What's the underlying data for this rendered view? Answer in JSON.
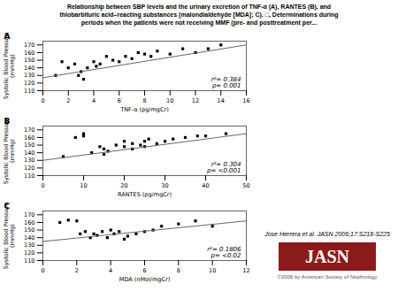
{
  "title": "Relationship between SBP levels and the urinary excretion of TNF-α (A), RANTES (B), and\nthiobarbituric acid–reacting substances (malondialdehyde [MDA]; C). □, Determinations during\nperiods when the patients were not receiving MMF (pre- and posttreatment per...",
  "footer": "Jose Herrera et al. JASN 2006;17:S218-S225",
  "logo": {
    "text": "JASN",
    "color": "#8B1A1A",
    "text_color": "#ffffff"
  },
  "copyright": "©2006 by American Society of Nephrology",
  "chart_data": [
    {
      "type": "scatter",
      "label": "A",
      "xlabel": "TNF-α (pg/mgCr)",
      "ylabel": "Systolic Blood Pressure\n(mmHg)",
      "xlim": [
        0,
        16
      ],
      "ylim": [
        110,
        175
      ],
      "xticks": [
        0,
        2,
        4,
        6,
        8,
        10,
        12,
        14,
        16
      ],
      "yticks": [
        110,
        120,
        130,
        140,
        150,
        160,
        170
      ],
      "annotations": [
        "r²= 0.384",
        "p= 0.001"
      ],
      "series": [
        {
          "type": "scatter",
          "color": "#000000",
          "marker": "square",
          "x": [
            1.0,
            1.5,
            2.0,
            2.5,
            2.8,
            3.0,
            3.2,
            3.5,
            4.0,
            4.2,
            4.5,
            5.0,
            5.5,
            6.0,
            6.5,
            7.0,
            7.5,
            8.0,
            8.5,
            9.0,
            10.0,
            11.0,
            12.0,
            13.0,
            14.0
          ],
          "values": [
            130,
            148,
            140,
            145,
            130,
            135,
            125,
            140,
            148,
            142,
            145,
            155,
            150,
            148,
            155,
            152,
            160,
            158,
            155,
            162,
            158,
            165,
            160,
            165,
            170
          ]
        },
        {
          "type": "line",
          "color": "#666666",
          "x": [
            0,
            16
          ],
          "values": [
            127,
            170
          ]
        }
      ]
    },
    {
      "type": "scatter",
      "label": "B",
      "xlabel": "RANTES (pg/mgCr)",
      "ylabel": "Systolic Blood Pressure\n(mmHg)",
      "xlim": [
        0,
        50
      ],
      "ylim": [
        110,
        175
      ],
      "xticks": [
        0,
        10,
        20,
        30,
        40,
        50
      ],
      "yticks": [
        110,
        120,
        130,
        140,
        150,
        160,
        170
      ],
      "annotations": [
        "r²= 0.304",
        "p= <0.001"
      ],
      "series": [
        {
          "type": "scatter",
          "color": "#000000",
          "marker": "square",
          "x": [
            5,
            8,
            10,
            10,
            12,
            14,
            15,
            15,
            16,
            18,
            20,
            20,
            22,
            22,
            24,
            25,
            25,
            26,
            28,
            30,
            32,
            35,
            38,
            40,
            45
          ],
          "values": [
            135,
            160,
            162,
            165,
            140,
            148,
            145,
            138,
            142,
            150,
            148,
            155,
            152,
            145,
            150,
            155,
            148,
            158,
            152,
            155,
            158,
            160,
            162,
            162,
            165
          ]
        },
        {
          "type": "line",
          "color": "#666666",
          "x": [
            0,
            50
          ],
          "values": [
            130,
            165
          ]
        }
      ]
    },
    {
      "type": "scatter",
      "label": "C",
      "xlabel": "MDA (nMol/mgCr)",
      "ylabel": "Systolic Blood Pressure\n(mmHg)",
      "xlim": [
        0,
        12
      ],
      "ylim": [
        110,
        175
      ],
      "xticks": [
        0,
        2,
        4,
        6,
        8,
        10,
        12
      ],
      "yticks": [
        110,
        120,
        130,
        140,
        150,
        160,
        170
      ],
      "annotations": [
        "r²= 0.1806",
        "p= <0.02"
      ],
      "series": [
        {
          "type": "scatter",
          "color": "#000000",
          "marker": "square",
          "x": [
            1.0,
            1.5,
            2.0,
            2.2,
            2.5,
            2.8,
            3.0,
            3.2,
            3.5,
            3.8,
            4.0,
            4.2,
            4.5,
            4.8,
            5.0,
            5.5,
            6.0,
            6.5,
            7.0,
            8.0,
            9.0,
            10.0
          ],
          "values": [
            160,
            163,
            162,
            145,
            148,
            140,
            145,
            143,
            148,
            140,
            150,
            145,
            148,
            138,
            142,
            145,
            148,
            150,
            155,
            158,
            162,
            155
          ]
        },
        {
          "type": "line",
          "color": "#666666",
          "x": [
            0,
            12
          ],
          "values": [
            135,
            162
          ]
        }
      ]
    }
  ]
}
